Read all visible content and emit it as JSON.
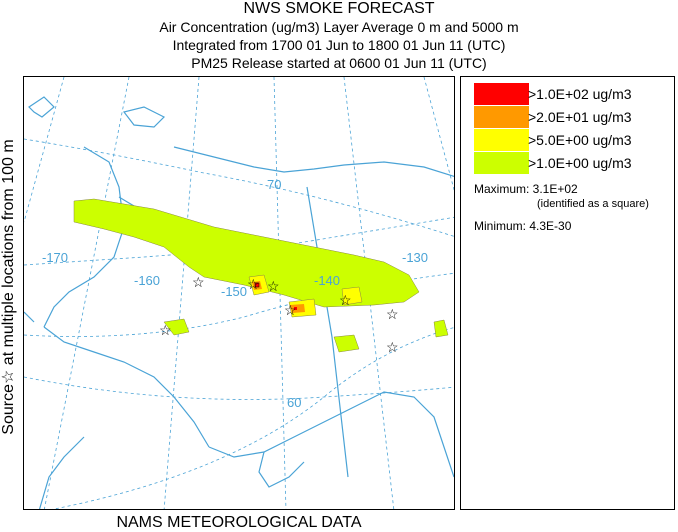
{
  "header": {
    "line1": "NWS SMOKE FORECAST",
    "line2": "Air Concentration (ug/m3) Layer Average    0 m and  5000 m",
    "line3": "Integrated from 1700 01 Jun to 1800 01 Jun 11 (UTC)",
    "line4": "PM25 Release started at 0600 01 Jun 11 (UTC)"
  },
  "side_label": "Source☆ at multiple locations    from  100 m",
  "bottom_label": "NAMS METEOROLOGICAL DATA",
  "map": {
    "graticule_labels": {
      "lat_70": "70",
      "lat_60": "60",
      "lon_170": "-170",
      "lon_160": "-160",
      "lon_150": "-150",
      "lon_140": "-140",
      "lon_130": "-130"
    },
    "colors": {
      "coast": "#4aa3d6",
      "graticule": "#4aa3d6",
      "level1": "#ff0000",
      "level2": "#ff9900",
      "level3": "#ffff00",
      "level4": "#ccff00"
    },
    "source_marker": "star-icon"
  },
  "legend": {
    "levels": [
      {
        "label": ">1.0E+02 ug/m3",
        "color": "#ff0000"
      },
      {
        "label": ">2.0E+01 ug/m3",
        "color": "#ff9900"
      },
      {
        "label": ">5.0E+00 ug/m3",
        "color": "#ffff00"
      },
      {
        "label": ">1.0E+00 ug/m3",
        "color": "#ccff00"
      }
    ],
    "maximum": "Maximum: 3.1E+02",
    "maximum_note": "(identified as a square)",
    "minimum": "Minimum: 4.3E-30"
  }
}
